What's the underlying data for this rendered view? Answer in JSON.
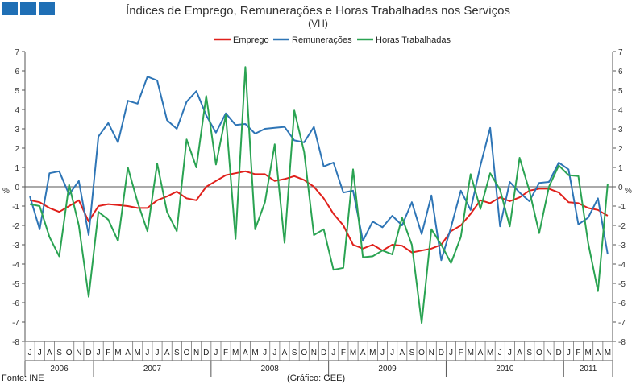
{
  "header": {
    "title": "Índices de Emprego, Remunerações e Horas Trabalhadas nos Serviços",
    "subtitle": "(VH)"
  },
  "footer": {
    "source": "Fonte: INE",
    "credit": "(Gráfico: GEE)"
  },
  "colors": {
    "emprego": "#e0201b",
    "remuneracoes": "#2e75b6",
    "horas": "#2aa352",
    "logo": "#1f6fb5"
  },
  "chart_data": {
    "type": "line",
    "y_unit_left": "%",
    "y_unit_right": "%",
    "ylim": [
      -8,
      7
    ],
    "yticks": [
      7,
      6,
      5,
      4,
      3,
      2,
      1,
      0,
      -1,
      -2,
      -3,
      -4,
      -5,
      -6,
      -7,
      -8
    ],
    "grid": false,
    "legend_position": "top-center",
    "x": [
      "J",
      "J",
      "A",
      "S",
      "O",
      "N",
      "D",
      "J",
      "F",
      "M",
      "A",
      "M",
      "J",
      "J",
      "A",
      "S",
      "O",
      "N",
      "D",
      "J",
      "F",
      "M",
      "A",
      "M",
      "J",
      "J",
      "A",
      "S",
      "O",
      "N",
      "D",
      "J",
      "F",
      "M",
      "A",
      "M",
      "J",
      "J",
      "A",
      "S",
      "O",
      "N",
      "D",
      "J",
      "F",
      "M",
      "A",
      "M",
      "J",
      "J",
      "A",
      "S",
      "O",
      "N",
      "D",
      "J",
      "F",
      "M",
      "A",
      "M"
    ],
    "year_groups": [
      {
        "label": "2006",
        "months": 7
      },
      {
        "label": "2007",
        "months": 12
      },
      {
        "label": "2008",
        "months": 12
      },
      {
        "label": "2009",
        "months": 12
      },
      {
        "label": "2010",
        "months": 12
      },
      {
        "label": "2011",
        "months": 5
      }
    ],
    "series": [
      {
        "name": "Emprego",
        "color": "#e0201b",
        "values": [
          -0.7,
          -0.8,
          -1.1,
          -1.3,
          -1.0,
          -0.7,
          -1.8,
          -1.0,
          -0.9,
          -0.95,
          -1.0,
          -1.1,
          -1.1,
          -0.7,
          -0.5,
          -0.25,
          -0.6,
          -0.7,
          0.0,
          0.3,
          0.6,
          0.7,
          0.8,
          0.65,
          0.65,
          0.3,
          0.4,
          0.55,
          0.35,
          0.0,
          -0.6,
          -1.4,
          -2.0,
          -3.0,
          -3.2,
          -3.0,
          -3.3,
          -3.0,
          -3.05,
          -3.4,
          -3.3,
          -3.2,
          -3.0,
          -2.3,
          -2.0,
          -1.4,
          -0.7,
          -0.85,
          -0.55,
          -0.75,
          -0.55,
          -0.2,
          -0.1,
          -0.1,
          -0.3,
          -0.8,
          -0.85,
          -1.1,
          -1.2,
          -1.5
        ]
      },
      {
        "name": "Remunerações",
        "color": "#2e75b6",
        "values": [
          -0.5,
          -2.2,
          0.7,
          0.8,
          -0.4,
          0.3,
          -2.5,
          2.6,
          3.3,
          2.3,
          4.45,
          4.3,
          5.7,
          5.5,
          3.45,
          3.0,
          4.4,
          4.95,
          3.7,
          2.8,
          3.8,
          3.2,
          3.25,
          2.75,
          3.0,
          3.05,
          3.1,
          2.4,
          2.3,
          3.1,
          1.05,
          1.25,
          -0.3,
          -0.2,
          -2.8,
          -1.8,
          -2.1,
          -1.5,
          -2.0,
          -0.8,
          -2.45,
          -0.45,
          -3.8,
          -2.1,
          -0.2,
          -1.2,
          1.1,
          3.05,
          -2.05,
          0.25,
          -0.3,
          -0.75,
          0.2,
          0.25,
          1.25,
          0.9,
          -1.95,
          -1.6,
          -0.6,
          -3.5
        ]
      },
      {
        "name": "Horas Trabalhadas",
        "color": "#2aa352",
        "values": [
          -0.9,
          -1.0,
          -2.6,
          -3.6,
          0.1,
          -2.0,
          -5.7,
          -1.3,
          -1.7,
          -2.8,
          1.0,
          -0.8,
          -2.3,
          1.2,
          -1.3,
          -2.3,
          2.45,
          1.0,
          4.7,
          1.15,
          3.7,
          -2.7,
          6.2,
          -2.2,
          -0.8,
          2.2,
          -2.9,
          3.95,
          1.8,
          -2.5,
          -2.2,
          -4.3,
          -4.2,
          0.9,
          -3.65,
          -3.6,
          -3.3,
          -3.5,
          -1.6,
          -3.0,
          -7.05,
          -2.2,
          -3.0,
          -3.95,
          -2.6,
          0.65,
          -1.15,
          0.7,
          -0.15,
          -2.05,
          1.5,
          -0.2,
          -2.4,
          0.0,
          1.1,
          0.6,
          0.55,
          -2.9,
          -5.4,
          0.15
        ]
      }
    ]
  }
}
